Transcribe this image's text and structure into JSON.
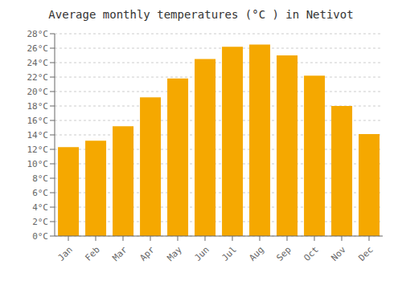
{
  "chart_data": {
    "type": "bar",
    "title": "Average monthly temperatures (°C ) in Netivot",
    "categories": [
      "Jan",
      "Feb",
      "Mar",
      "Apr",
      "May",
      "Jun",
      "Jul",
      "Aug",
      "Sep",
      "Oct",
      "Nov",
      "Dec"
    ],
    "values": [
      12.3,
      13.2,
      15.2,
      19.2,
      21.8,
      24.5,
      26.2,
      26.5,
      25.0,
      22.2,
      18.0,
      14.1
    ],
    "color": "#F5A800",
    "ylim": [
      0,
      28
    ],
    "yticks": [
      {
        "value": 0,
        "label": "0°C"
      },
      {
        "value": 2,
        "label": "2°C"
      },
      {
        "value": 4,
        "label": "4°C"
      },
      {
        "value": 6,
        "label": "6°C"
      },
      {
        "value": 8,
        "label": "8°C"
      },
      {
        "value": 10,
        "label": "10°C"
      },
      {
        "value": 12,
        "label": "12°C"
      },
      {
        "value": 14,
        "label": "14°C"
      },
      {
        "value": 16,
        "label": "16°C"
      },
      {
        "value": 18,
        "label": "18°C"
      },
      {
        "value": 20,
        "label": "20°C"
      },
      {
        "value": 22,
        "label": "22°C"
      },
      {
        "value": 24,
        "label": "24°C"
      },
      {
        "value": 26,
        "label": "26°C"
      },
      {
        "value": 28,
        "label": "28°C"
      }
    ],
    "grid": true
  }
}
